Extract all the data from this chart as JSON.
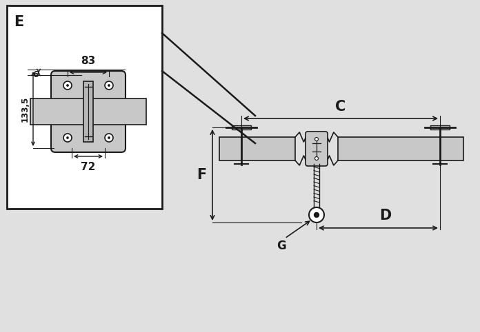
{
  "bg_color": "#e0e0e0",
  "box_color": "#ffffff",
  "part_color": "#c8c8c8",
  "dark_color": "#1a1a1a",
  "label_E": "E",
  "label_83": "83",
  "label_6": "6",
  "label_133_5": "133,5",
  "label_72": "72",
  "label_C": "C",
  "label_D": "D",
  "label_F": "F",
  "label_G": "G"
}
